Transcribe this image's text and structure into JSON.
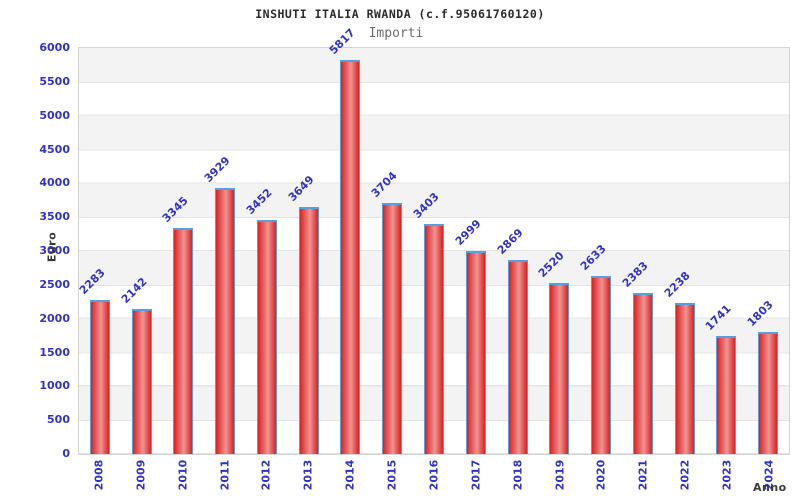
{
  "title": "INSHUTI ITALIA RWANDA (c.f.95061760120)",
  "chart_data": {
    "type": "bar",
    "title": "INSHUTI ITALIA RWANDA (c.f.95061760120)",
    "series_label": "Importi",
    "xlabel": "Anno",
    "ylabel": "Euro",
    "categories": [
      "2008",
      "2009",
      "2010",
      "2011",
      "2012",
      "2013",
      "2014",
      "2015",
      "2016",
      "2017",
      "2018",
      "2019",
      "2020",
      "2021",
      "2022",
      "2023",
      "2024"
    ],
    "values": [
      2283,
      2142,
      3345,
      3929,
      3452,
      3649,
      5817,
      3704,
      3403,
      2999,
      2869,
      2520,
      2633,
      2383,
      2238,
      1741,
      1803
    ],
    "ylim": [
      0,
      6000
    ],
    "yticks": [
      6000,
      5500,
      5000,
      4500,
      4000,
      3500,
      3000,
      2500,
      2000,
      1500,
      1000,
      500,
      0
    ],
    "grid": "horizontal gridlines with alternating gray/white 500-unit bands",
    "legend_position": "top-center",
    "value_labels": "above bars, rotated -45deg",
    "colors": {
      "bar_edge": "#dc2121",
      "bar_center": "#ef9494",
      "bar_border": "#57a0e0",
      "label_blue": "#3232c8",
      "band_gray": "#f3f3f3",
      "gridline": "#e4e4e4",
      "plot_border": "#d4d4d4",
      "title_color": "#2b2b2b",
      "subtitle_color": "#6e6e6e",
      "axis_title_color": "#3a3a3a"
    }
  }
}
